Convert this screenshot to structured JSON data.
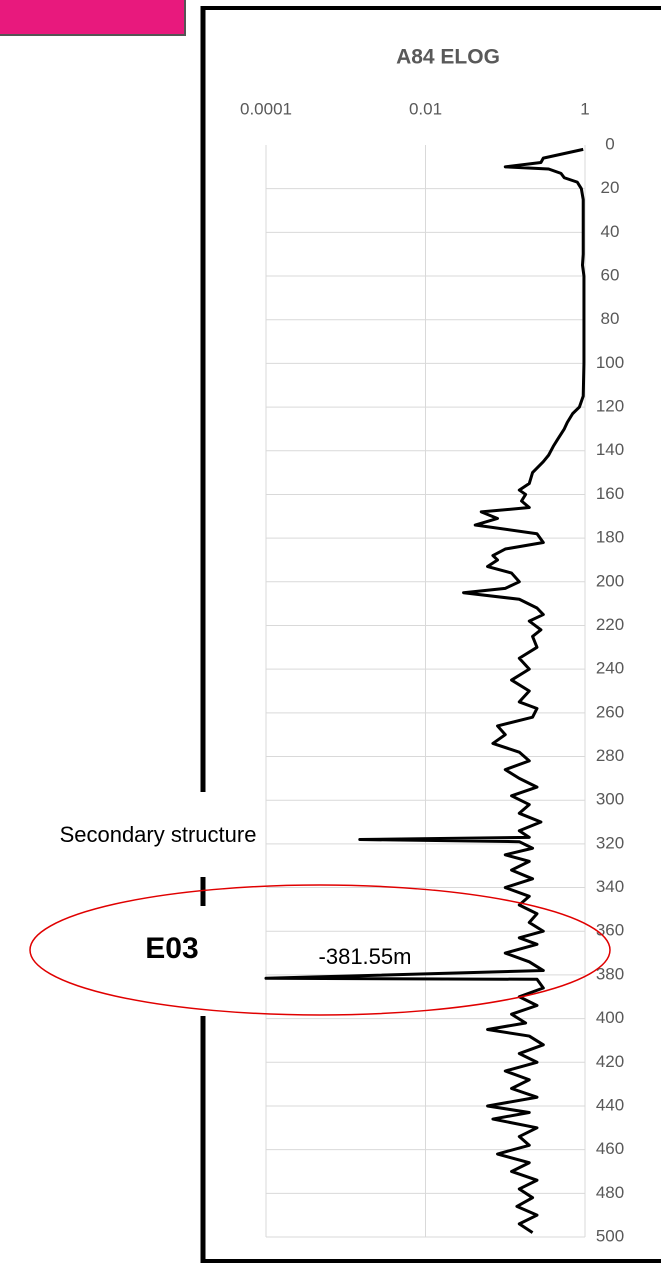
{
  "chart_data": {
    "type": "line",
    "title": "A84 ELOG",
    "log_x": true,
    "y_inverted": true,
    "y_axis_side": "right",
    "grid": true,
    "xlim": [
      0.0001,
      1
    ],
    "xticks": [
      0.0001,
      0.01,
      1
    ],
    "ylim": [
      0,
      500
    ],
    "yticks": [
      0,
      20,
      40,
      60,
      80,
      100,
      120,
      140,
      160,
      180,
      200,
      220,
      240,
      260,
      280,
      300,
      320,
      340,
      360,
      380,
      400,
      420,
      440,
      460,
      480,
      500
    ],
    "y": [
      2,
      6,
      8,
      10,
      11,
      13,
      15,
      17,
      20,
      25,
      50,
      55,
      60,
      100,
      115,
      120,
      123,
      127,
      130,
      135,
      138,
      142,
      145,
      150,
      155,
      158,
      160,
      163,
      166,
      168,
      171,
      174,
      178,
      182,
      185,
      188,
      190,
      193,
      196,
      200,
      203,
      205,
      208,
      212,
      215,
      218,
      222,
      225,
      230,
      235,
      240,
      245,
      250,
      255,
      258,
      262,
      266,
      270,
      274,
      278,
      282,
      286,
      290,
      294,
      298,
      302,
      306,
      310,
      314,
      317,
      318,
      319,
      322,
      325,
      328,
      332,
      336,
      340,
      344,
      348,
      352,
      356,
      360,
      363,
      366,
      370,
      374,
      378,
      381.55,
      382,
      386,
      390,
      394,
      398,
      402,
      405,
      408,
      412,
      416,
      420,
      424,
      428,
      432,
      436,
      440,
      443,
      446,
      450,
      454,
      458,
      462,
      466,
      470,
      474,
      478,
      482,
      486,
      490,
      494,
      498
    ],
    "series": [
      {
        "color": "#000000",
        "values": [
          0.95,
          0.3,
          0.28,
          0.1,
          0.35,
          0.5,
          0.55,
          0.8,
          0.9,
          0.95,
          0.95,
          0.93,
          0.97,
          0.97,
          0.95,
          0.85,
          0.7,
          0.6,
          0.55,
          0.45,
          0.4,
          0.35,
          0.3,
          0.22,
          0.2,
          0.15,
          0.18,
          0.16,
          0.2,
          0.05,
          0.08,
          0.042,
          0.25,
          0.3,
          0.1,
          0.07,
          0.08,
          0.06,
          0.12,
          0.15,
          0.1,
          0.03,
          0.15,
          0.25,
          0.3,
          0.2,
          0.28,
          0.22,
          0.25,
          0.15,
          0.2,
          0.12,
          0.2,
          0.15,
          0.25,
          0.22,
          0.08,
          0.1,
          0.07,
          0.15,
          0.2,
          0.1,
          0.15,
          0.25,
          0.12,
          0.2,
          0.15,
          0.28,
          0.15,
          0.2,
          0.0015,
          0.15,
          0.22,
          0.1,
          0.2,
          0.12,
          0.22,
          0.1,
          0.2,
          0.15,
          0.25,
          0.2,
          0.3,
          0.15,
          0.25,
          0.1,
          0.2,
          0.3,
          0.0001,
          0.25,
          0.3,
          0.15,
          0.25,
          0.12,
          0.18,
          0.06,
          0.2,
          0.3,
          0.15,
          0.25,
          0.1,
          0.2,
          0.12,
          0.25,
          0.06,
          0.2,
          0.07,
          0.25,
          0.15,
          0.2,
          0.08,
          0.2,
          0.12,
          0.25,
          0.15,
          0.22,
          0.14,
          0.25,
          0.15,
          0.22
        ]
      }
    ],
    "annotations": [
      {
        "text": "Secondary structure"
      },
      {
        "text": "E03"
      },
      {
        "text": "-381.55m"
      }
    ]
  }
}
